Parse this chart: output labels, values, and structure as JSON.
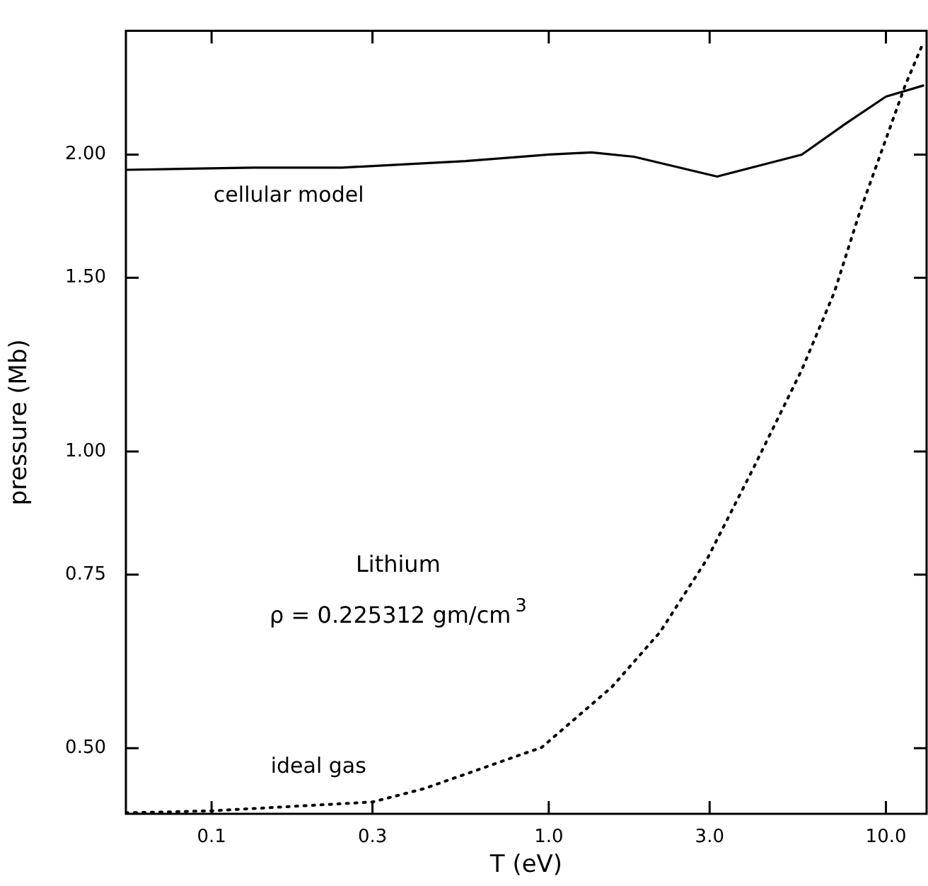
{
  "chart_data": {
    "type": "line",
    "xlabel": "T (eV)",
    "ylabel": "pressure (Mb)",
    "log": "xy",
    "grid": false,
    "legend": false,
    "marker": "none",
    "xlim": [
      0.0557,
      13.2
    ],
    "ylim": [
      0.429,
      2.67
    ],
    "xticks": [
      0.1,
      0.3,
      {
        "value": 1,
        "label": "1.0"
      },
      {
        "value": 3,
        "label": "3.0"
      },
      {
        "value": 10,
        "label": "10.0"
      }
    ],
    "yticks": [
      {
        "value": 0.5,
        "label": "0.50"
      },
      {
        "value": 0.75,
        "label": "0.75"
      },
      {
        "value": 1,
        "label": "1.00"
      },
      {
        "value": 1.5,
        "label": "1.50"
      },
      {
        "value": 2,
        "label": "2.00"
      }
    ],
    "series": [
      {
        "name": "cellular model",
        "color": "#000000",
        "line_style": "solid",
        "x": [
          0.0557,
          0.133,
          0.244,
          0.566,
          1.0,
          1.34,
          1.79,
          3.16,
          5.63,
          7.6,
          10,
          12.9
        ],
        "values": [
          1.93,
          1.94,
          1.94,
          1.97,
          2.0,
          2.01,
          1.99,
          1.9,
          2.0,
          2.15,
          2.29,
          2.35
        ]
      },
      {
        "name": "ideal gas",
        "color": "#000000",
        "line_style": "dotted",
        "x": [
          0.0557,
          0.1,
          0.163,
          0.3,
          0.427,
          0.953,
          1.54,
          2.14,
          2.95,
          4.06,
          5.63,
          7.03,
          8.37,
          11.4,
          12.8
        ],
        "values": [
          0.43,
          0.432,
          0.436,
          0.441,
          0.455,
          0.501,
          0.577,
          0.656,
          0.778,
          0.964,
          1.21,
          1.45,
          1.75,
          2.35,
          2.58
        ]
      }
    ],
    "annotations": [
      "Lithium",
      "ρ = 0.225312 gm/cm$^{3}$"
    ]
  }
}
